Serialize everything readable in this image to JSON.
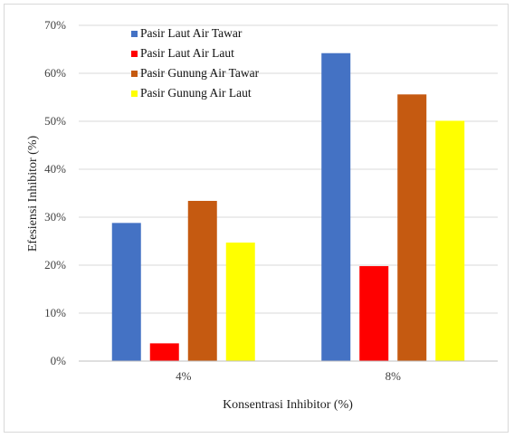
{
  "chart_data": {
    "type": "bar",
    "categories": [
      "4%",
      "8%"
    ],
    "series": [
      {
        "name": "Pasir Laut Air Tawar",
        "color": "#4472c4",
        "values": [
          28.8,
          64.2
        ]
      },
      {
        "name": "Pasir Laut Air Laut",
        "color": "#ff0000",
        "values": [
          3.7,
          19.8
        ]
      },
      {
        "name": "Pasir Gunung Air Tawar",
        "color": "#c55a11",
        "values": [
          33.4,
          55.6
        ]
      },
      {
        "name": "Pasir Gunung Air Laut",
        "color": "#ffff00",
        "values": [
          24.7,
          50.1
        ]
      }
    ],
    "xlabel": "Konsentrasi  Inhibitor (%)",
    "ylabel": "Efesiensi Inhibitor (%)",
    "ylim": [
      0,
      70
    ],
    "yticks": [
      "0%",
      "10%",
      "20%",
      "30%",
      "40%",
      "50%",
      "60%",
      "70%"
    ],
    "grid": true,
    "legend_position": "top-left"
  }
}
